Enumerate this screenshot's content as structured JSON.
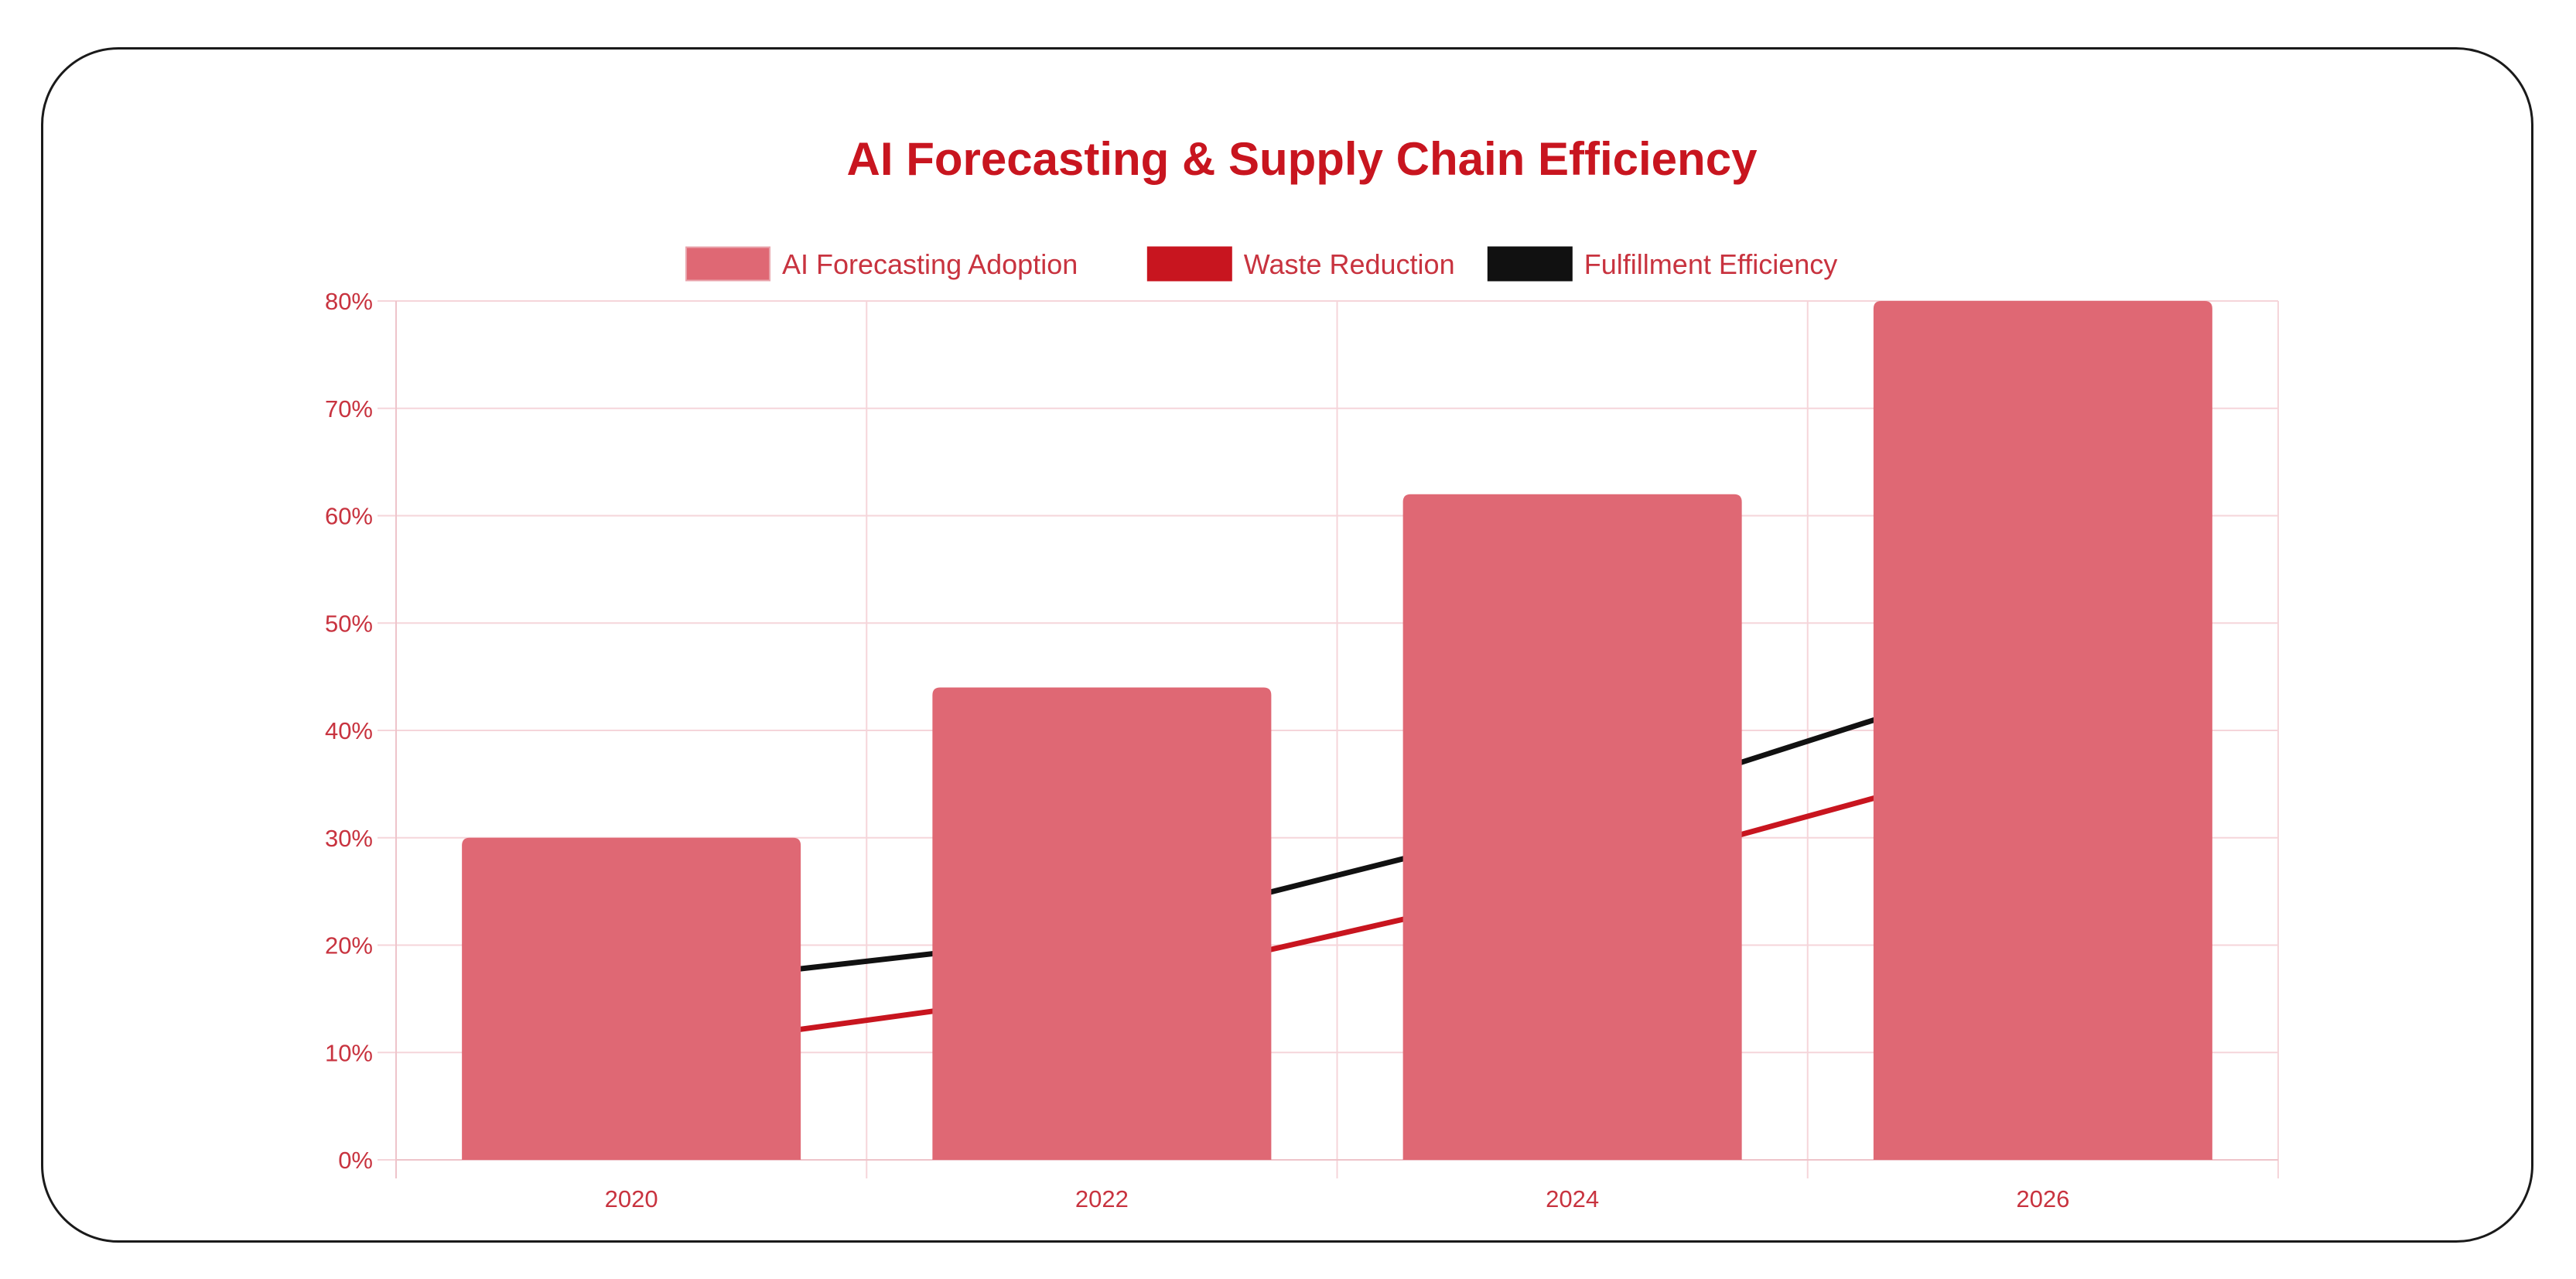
{
  "chart_data": {
    "type": "bar",
    "title": "AI Forecasting & Supply Chain Efficiency",
    "xlabel": "",
    "ylabel": "",
    "categories": [
      "2020",
      "2022",
      "2024",
      "2026"
    ],
    "ylim": [
      0,
      80
    ],
    "y_ticks": [
      "0%",
      "10%",
      "20%",
      "30%",
      "40%",
      "50%",
      "60%",
      "70%",
      "80%"
    ],
    "y_tick_values": [
      0,
      10,
      20,
      30,
      40,
      50,
      60,
      70,
      80
    ],
    "grid": true,
    "legend_position": "top",
    "series": [
      {
        "name": "AI Forecasting Adoption",
        "type": "bar",
        "values": [
          30,
          44,
          62,
          80
        ],
        "color": "#df6874"
      },
      {
        "name": "Waste Reduction",
        "type": "line",
        "values": [
          10,
          16,
          26,
          38
        ],
        "color": "#c8151f"
      },
      {
        "name": "Fulfillment Efficiency",
        "type": "line",
        "values": [
          16,
          21,
          32,
          46
        ],
        "color": "#111111"
      }
    ],
    "colors": {
      "title": "#c8151f",
      "tick_text": "#c8333f",
      "grid": "#f5d5da",
      "axis": "#eec4ca",
      "legend_text": "#c8333f"
    }
  }
}
